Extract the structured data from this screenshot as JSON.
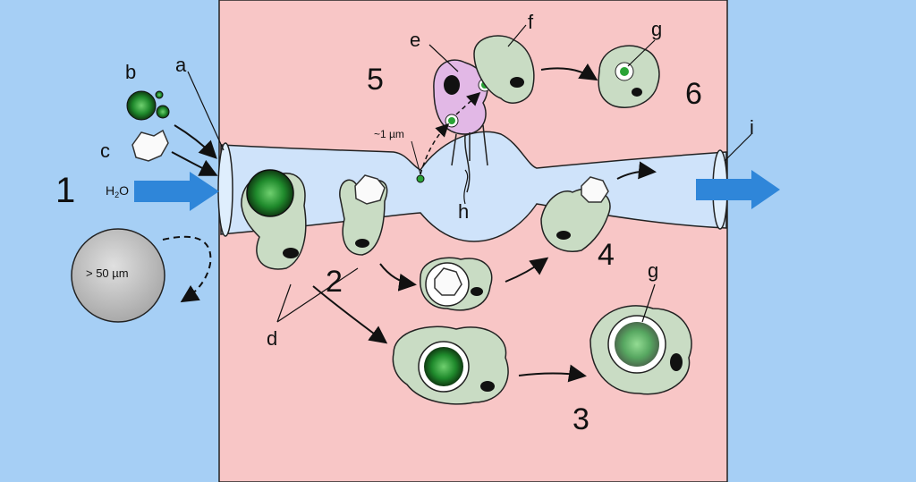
{
  "labels": {
    "a": "a",
    "b": "b",
    "c": "c",
    "d": "d",
    "e": "e",
    "f": "f",
    "g": "g",
    "h": "h",
    "i": "i"
  },
  "steps": [
    "1",
    "2",
    "3",
    "4",
    "5",
    "6"
  ],
  "annotations": {
    "water": "H",
    "water_sub": "2",
    "water_end": "O",
    "size_small": "~1 µm",
    "size_large": "> 50 µm"
  },
  "colors": {
    "outside_water": "#a6cff5",
    "tissue": "#f8c6c6",
    "canal": "#cfe3fa",
    "cell": "#c9dcc4",
    "choanocyte": "#e2b8e6",
    "arrow": "#2f86d9"
  }
}
